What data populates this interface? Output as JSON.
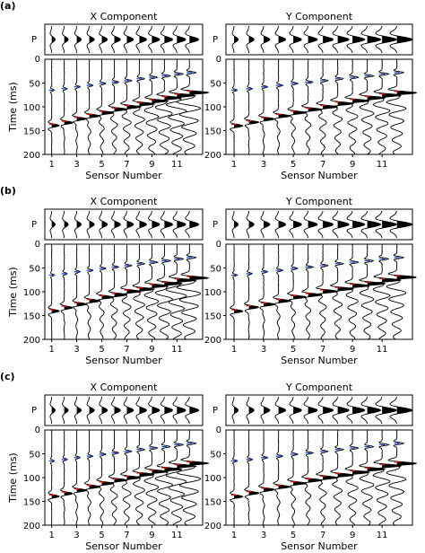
{
  "figure": {
    "panels": [
      {
        "label": "(a)",
        "x_title": "X Component",
        "y_title": "Y Component",
        "p_label": "P",
        "p_tick": "0",
        "ylabel": "Time (ms)",
        "xlabel": "Sensor Number",
        "y_ticks": [
          "50",
          "100",
          "150",
          "200"
        ],
        "x_ticks": [
          "1",
          "3",
          "5",
          "7",
          "9",
          "11"
        ]
      },
      {
        "label": "(b)",
        "x_title": "X Component",
        "y_title": "Y Component",
        "p_label": "P",
        "p_tick": "0",
        "ylabel": "Time (ms)",
        "xlabel": "Sensor Number",
        "y_ticks": [
          "50",
          "100",
          "150",
          "200"
        ],
        "x_ticks": [
          "1",
          "3",
          "5",
          "7",
          "9",
          "11"
        ]
      },
      {
        "label": "(c)",
        "x_title": "X Component",
        "y_title": "Y Component",
        "p_label": "P",
        "p_tick": "0",
        "ylabel": "Time (ms)",
        "xlabel": "Sensor Number",
        "y_ticks": [
          "50",
          "100",
          "150",
          "200"
        ],
        "x_ticks": [
          "1",
          "3",
          "5",
          "7",
          "9",
          "11"
        ]
      }
    ]
  },
  "chart_data": {
    "type": "line",
    "description_source": "seismic sensor gathers, 12 traces per component",
    "sensors": [
      1,
      2,
      3,
      4,
      5,
      6,
      7,
      8,
      9,
      10,
      11,
      12
    ],
    "ylim": [
      0,
      200
    ],
    "p_arrival_ms": [
      65,
      62,
      58,
      55,
      51,
      48,
      45,
      41,
      38,
      35,
      31,
      28
    ],
    "s_arrival_ms": [
      140,
      133,
      126,
      119,
      112,
      106,
      100,
      94,
      88,
      82,
      76,
      70
    ],
    "colors": {
      "p_pick": "#1f3fd0",
      "s_pick": "#e01010",
      "trace": "#000000"
    }
  }
}
